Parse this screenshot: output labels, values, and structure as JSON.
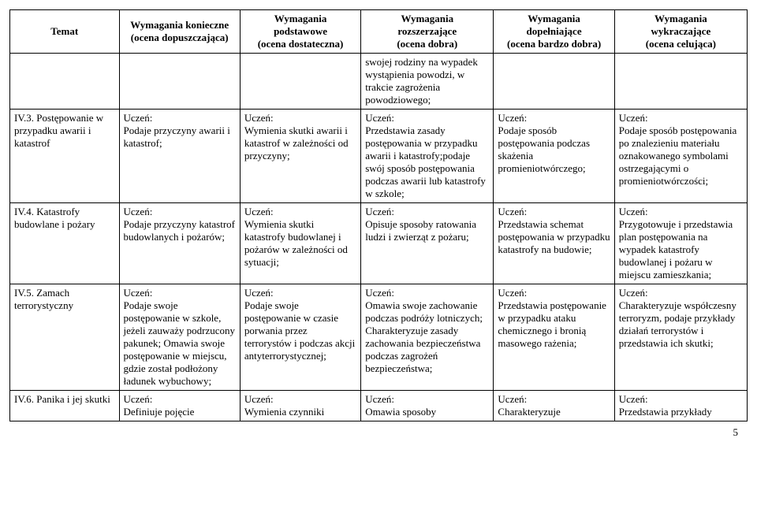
{
  "headers": {
    "c0": "Temat",
    "c1": "Wymagania konieczne\n(ocena dopuszczająca)",
    "c2": "Wymagania\npodstawowe\n(ocena dostateczna)",
    "c3": "Wymagania\nrozszerzające\n(ocena dobra)",
    "c4": "Wymagania\ndopełniające\n(ocena bardzo dobra)",
    "c5": "Wymagania\nwykraczające\n(ocena celująca)"
  },
  "carryover": {
    "c3": "swojej rodziny na wypadek wystąpienia powodzi, w trakcie zagrożenia powodziowego;"
  },
  "rows": [
    {
      "c0": "IV.3. Postępowanie w przypadku awarii i katastrof",
      "c1": "Uczeń:\nPodaje przyczyny awarii i katastrof;",
      "c2": "Uczeń:\nWymienia skutki awarii i katastrof w zależności od przyczyny;",
      "c3": "Uczeń:\nPrzedstawia zasady postępowania w przypadku awarii i katastrofy;podaje swój sposób postępowania podczas awarii lub katastrofy w szkole;",
      "c4": "Uczeń:\nPodaje sposób postępowania podczas skażenia promieniotwórczego;",
      "c5": "Uczeń:\nPodaje sposób postępowania po znalezieniu materiału oznakowanego symbolami ostrzegającymi o promieniotwórczości;"
    },
    {
      "c0": "IV.4. Katastrofy budowlane i pożary",
      "c1": "Uczeń:\nPodaje przyczyny katastrof budowlanych i pożarów;",
      "c2": "Uczeń:\nWymienia skutki katastrofy budowlanej i pożarów w zależności od sytuacji;",
      "c3": "Uczeń:\nOpisuje sposoby ratowania ludzi i zwierząt z pożaru;",
      "c4": "Uczeń:\nPrzedstawia schemat postępowania w przypadku katastrofy na budowie;",
      "c5": "Uczeń:\nPrzygotowuje i przedstawia plan postępowania na wypadek katastrofy budowlanej i pożaru w miejscu zamieszkania;"
    },
    {
      "c0": "IV.5. Zamach terrorystyczny",
      "c1": "Uczeń:\nPodaje swoje postępowanie w szkole, jeżeli zauważy podrzucony pakunek; Omawia swoje postępowanie w miejscu, gdzie został podłożony ładunek wybuchowy;",
      "c2": "Uczeń:\nPodaje swoje postępowanie w czasie porwania przez terrorystów i podczas akcji antyterrorystycznej;",
      "c3": "Uczeń:\nOmawia swoje zachowanie podczas podróży lotniczych; Charakteryzuje zasady zachowania bezpieczeństwa podczas zagrożeń bezpieczeństwa;",
      "c4": "Uczeń:\nPrzedstawia postępowanie w przypadku ataku chemicznego i bronią masowego rażenia;",
      "c5": "Uczeń:\nCharakteryzuje współczesny terroryzm, podaje przykłady działań terrorystów i przedstawia ich skutki;"
    },
    {
      "c0": "IV.6. Panika i jej skutki",
      "c1": "Uczeń:\nDefiniuje pojęcie",
      "c2": "Uczeń:\nWymienia czynniki",
      "c3": "Uczeń:\nOmawia sposoby",
      "c4": "Uczeń:\nCharakteryzuje",
      "c5": "Uczeń:\nPrzedstawia przykłady"
    }
  ],
  "page_number": "5"
}
